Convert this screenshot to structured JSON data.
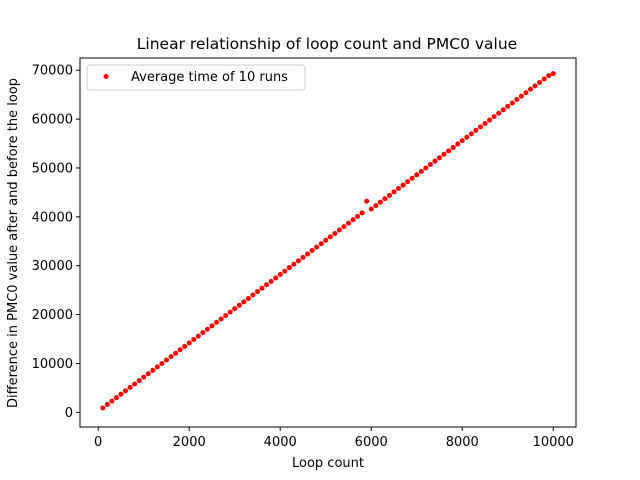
{
  "chart_data": {
    "type": "scatter",
    "title": "Linear relationship of loop count and PMC0 value",
    "xlabel": "Loop count",
    "ylabel": "Difference in PMC0 value after and before the loop",
    "xlim": [
      -400,
      10500
    ],
    "ylim": [
      -3000,
      72500
    ],
    "xticks": [
      0,
      2000,
      4000,
      6000,
      8000,
      10000
    ],
    "yticks": [
      0,
      10000,
      20000,
      30000,
      40000,
      50000,
      60000,
      70000
    ],
    "xtick_labels": [
      "0",
      "2000",
      "4000",
      "6000",
      "8000",
      "10000"
    ],
    "ytick_labels": [
      "0",
      "10000",
      "20000",
      "30000",
      "40000",
      "50000",
      "60000",
      "70000"
    ],
    "grid": false,
    "legend_placement": "upper-left",
    "series": [
      {
        "name": "Average time of 10 runs",
        "color": "#ff0000",
        "marker": "circle",
        "x": [
          100,
          200,
          300,
          400,
          500,
          600,
          700,
          800,
          900,
          1000,
          1100,
          1200,
          1300,
          1400,
          1500,
          1600,
          1700,
          1800,
          1900,
          2000,
          2100,
          2200,
          2300,
          2400,
          2500,
          2600,
          2700,
          2800,
          2900,
          3000,
          3100,
          3200,
          3300,
          3400,
          3500,
          3600,
          3700,
          3800,
          3900,
          4000,
          4100,
          4200,
          4300,
          4400,
          4500,
          4600,
          4700,
          4800,
          4900,
          5000,
          5100,
          5200,
          5300,
          5400,
          5500,
          5600,
          5700,
          5800,
          5900,
          6000,
          6100,
          6200,
          6300,
          6400,
          6500,
          6600,
          6700,
          6800,
          6900,
          7000,
          7100,
          7200,
          7300,
          7400,
          7500,
          7600,
          7700,
          7800,
          7900,
          8000,
          8100,
          8200,
          8300,
          8400,
          8500,
          8600,
          8700,
          8800,
          8900,
          9000,
          9100,
          9200,
          9300,
          9400,
          9500,
          9600,
          9700,
          9800,
          9900,
          10000
        ],
        "y": [
          900,
          1600,
          2300,
          3000,
          3700,
          4400,
          5100,
          5800,
          6500,
          7200,
          7900,
          8600,
          9300,
          10000,
          10700,
          11400,
          12100,
          12800,
          13500,
          14200,
          14900,
          15600,
          16300,
          17000,
          17700,
          18400,
          19100,
          19800,
          20500,
          21200,
          21900,
          22600,
          23300,
          24000,
          24700,
          25400,
          26100,
          26800,
          27500,
          28200,
          28900,
          29600,
          30300,
          31000,
          31700,
          32400,
          33100,
          33800,
          34500,
          35200,
          35900,
          36600,
          37300,
          38000,
          38700,
          39400,
          40100,
          40800,
          43200,
          41600,
          42300,
          43000,
          43700,
          44400,
          45100,
          45800,
          46500,
          47200,
          47900,
          48600,
          49300,
          50000,
          50700,
          51400,
          52100,
          52800,
          53500,
          54200,
          54900,
          55600,
          56300,
          57000,
          57700,
          58400,
          59100,
          59800,
          60500,
          61200,
          61900,
          62600,
          63300,
          64000,
          64700,
          65400,
          66100,
          66800,
          67500,
          68200,
          68900,
          69300
        ]
      }
    ]
  }
}
